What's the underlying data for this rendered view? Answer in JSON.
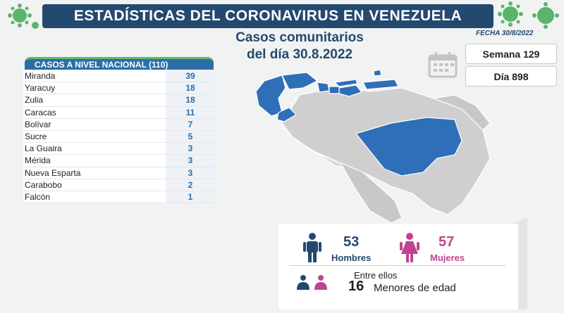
{
  "header": {
    "title": "ESTADÍSTICAS DEL CORONAVIRUS EN VENEZUELA",
    "date": "FECHA 30/8/2022",
    "subtitle_line1": "Casos comunitarios",
    "subtitle_line2": "del día 30.8.2022"
  },
  "cases_table": {
    "header": "CASOS A NIVEL NACIONAL  (110)",
    "rows": [
      {
        "name": "Miranda",
        "value": "39"
      },
      {
        "name": "Yaracuy",
        "value": "18"
      },
      {
        "name": "Zulia",
        "value": "18"
      },
      {
        "name": "Caracas",
        "value": "11"
      },
      {
        "name": "Bolívar",
        "value": "7"
      },
      {
        "name": "Sucre",
        "value": "5"
      },
      {
        "name": "La Guaira",
        "value": "3"
      },
      {
        "name": "Mérida",
        "value": "3"
      },
      {
        "name": "Nueva Esparta",
        "value": "3"
      },
      {
        "name": "Carabobo",
        "value": "2"
      },
      {
        "name": "Falcón",
        "value": "1"
      }
    ]
  },
  "period": {
    "week": "Semana 129",
    "day": "Día 898"
  },
  "demographics": {
    "men_count": "53",
    "men_label": "Hombres",
    "women_count": "57",
    "women_label": "Mujeres",
    "among_label": "Entre ellos",
    "minors_count": "16",
    "minors_label": "Menores de edad"
  },
  "colors": {
    "banner": "#24496f",
    "affected_state": "#2f6fb8",
    "unaffected_state": "#cfcfcf",
    "men": "#24496f",
    "women": "#c0448f",
    "table_value": "#2a6ea8"
  }
}
